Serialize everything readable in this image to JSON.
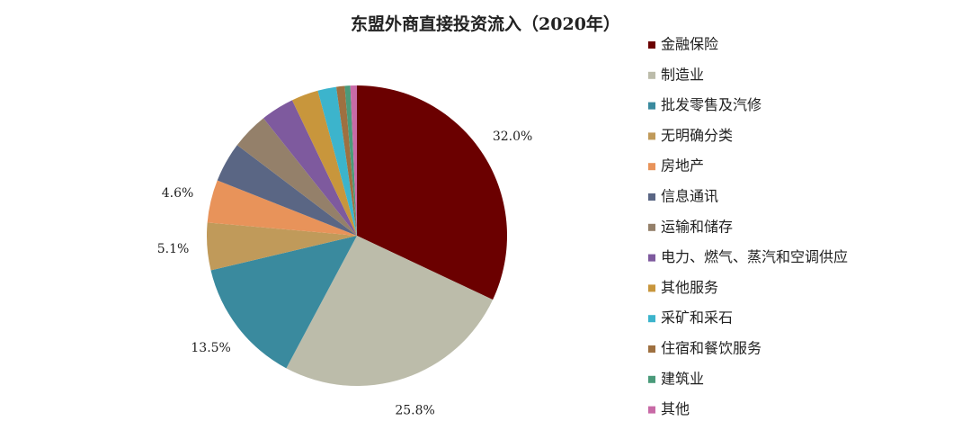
{
  "chart_data": {
    "type": "pie",
    "title": "东盟外商直接投资流入（2020年）",
    "categories": [
      "金融保险",
      "制造业",
      "批发零售及汽修",
      "无明确分类",
      "房地产",
      "信息通讯",
      "运输和储存",
      "电力、燃气、蒸汽和空调供应",
      "其他服务",
      "采矿和采石",
      "住宿和餐饮服务",
      "建筑业",
      "其他"
    ],
    "values": [
      32.0,
      25.8,
      13.5,
      5.1,
      4.6,
      4.3,
      4.0,
      3.6,
      2.9,
      2.0,
      0.9,
      0.6,
      0.7
    ],
    "value_labels": [
      "32.0%",
      "25.8%",
      "13.5%",
      "5.1%",
      "4.6%",
      null,
      null,
      null,
      null,
      null,
      null,
      null,
      null
    ],
    "colors": [
      "#6b0000",
      "#bcbcaa",
      "#3a8a9e",
      "#c09a5a",
      "#e8935a",
      "#5a6684",
      "#94806a",
      "#7e5a9e",
      "#c8963c",
      "#3cb4cc",
      "#9e7040",
      "#4a9a7a",
      "#c86aa6"
    ],
    "legend": "right"
  }
}
